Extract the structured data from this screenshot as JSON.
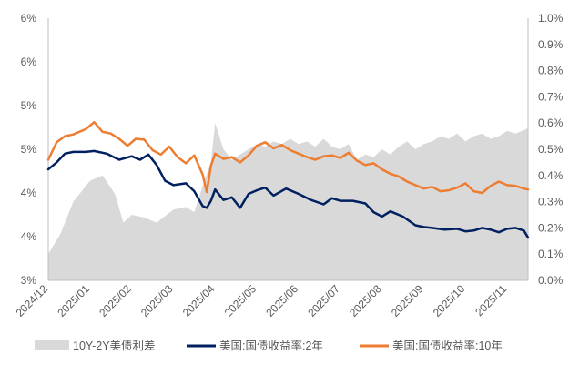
{
  "chart_data": {
    "type": "line",
    "title": "",
    "xlabel": "",
    "ylabel_left": "",
    "ylabel_right": "",
    "x_categories": [
      "2024/12",
      "2025/01",
      "2025/02",
      "2025/03",
      "2025/04",
      "2025/05",
      "2025/06",
      "2025/07",
      "2025/08",
      "2025/09",
      "2025/10",
      "2025/11"
    ],
    "left_axis": {
      "ticks": [
        "3%",
        "4%",
        "4%",
        "5%",
        "5%",
        "6%",
        "6%"
      ]
    },
    "right_axis": {
      "ticks": [
        "0.0%",
        "0.1%",
        "0.2%",
        "0.3%",
        "0.4%",
        "0.5%",
        "0.6%",
        "0.7%",
        "0.8%",
        "0.9%",
        "1.0%"
      ]
    },
    "grid": false,
    "legend_position": "bottom",
    "series": [
      {
        "name": "10Y-2Y美债利差",
        "kind": "area",
        "axis": "right",
        "color": "#d9d9d9",
        "x": [
          0.0,
          0.3,
          0.6,
          1.0,
          1.3,
          1.6,
          1.8,
          2.0,
          2.3,
          2.6,
          3.0,
          3.3,
          3.5,
          3.7,
          3.9,
          4.0,
          4.2,
          4.4,
          4.6,
          4.8,
          5.0,
          5.2,
          5.4,
          5.6,
          5.8,
          6.0,
          6.2,
          6.4,
          6.6,
          6.8,
          7.0,
          7.2,
          7.4,
          7.6,
          7.8,
          8.0,
          8.2,
          8.4,
          8.6,
          8.8,
          9.0,
          9.2,
          9.4,
          9.6,
          9.8,
          10.0,
          10.2,
          10.4,
          10.6,
          10.8,
          11.0,
          11.2,
          11.5
        ],
        "y": [
          0.1,
          0.18,
          0.3,
          0.38,
          0.4,
          0.33,
          0.22,
          0.25,
          0.24,
          0.22,
          0.27,
          0.28,
          0.26,
          0.36,
          0.45,
          0.6,
          0.5,
          0.46,
          0.48,
          0.5,
          0.52,
          0.51,
          0.53,
          0.52,
          0.54,
          0.52,
          0.53,
          0.51,
          0.54,
          0.51,
          0.5,
          0.52,
          0.46,
          0.48,
          0.47,
          0.5,
          0.48,
          0.51,
          0.53,
          0.5,
          0.52,
          0.53,
          0.55,
          0.54,
          0.56,
          0.53,
          0.55,
          0.56,
          0.54,
          0.55,
          0.57,
          0.56,
          0.58
        ]
      },
      {
        "name": "美国:国债收益率:2年",
        "kind": "line",
        "axis": "left",
        "color": "#002060",
        "x": [
          0.0,
          0.2,
          0.4,
          0.6,
          0.9,
          1.1,
          1.4,
          1.7,
          2.0,
          2.2,
          2.4,
          2.6,
          2.8,
          3.0,
          3.3,
          3.5,
          3.7,
          3.8,
          3.9,
          4.0,
          4.2,
          4.4,
          4.6,
          4.8,
          5.0,
          5.2,
          5.4,
          5.7,
          6.0,
          6.3,
          6.6,
          6.8,
          7.0,
          7.3,
          7.6,
          7.8,
          8.0,
          8.2,
          8.5,
          8.8,
          9.0,
          9.2,
          9.5,
          9.8,
          10.0,
          10.2,
          10.4,
          10.6,
          10.8,
          11.0,
          11.2,
          11.4,
          11.5
        ],
        "y": [
          4.27,
          4.35,
          4.45,
          4.47,
          4.47,
          4.48,
          4.45,
          4.38,
          4.42,
          4.38,
          4.44,
          4.32,
          4.14,
          4.09,
          4.11,
          4.02,
          3.85,
          3.83,
          3.91,
          4.04,
          3.92,
          3.95,
          3.83,
          3.99,
          4.03,
          4.06,
          3.97,
          4.05,
          3.99,
          3.92,
          3.87,
          3.94,
          3.91,
          3.91,
          3.88,
          3.78,
          3.73,
          3.79,
          3.73,
          3.63,
          3.61,
          3.6,
          3.58,
          3.59,
          3.56,
          3.57,
          3.6,
          3.58,
          3.55,
          3.59,
          3.6,
          3.57,
          3.49
        ]
      },
      {
        "name": "美国:国债收益率:10年",
        "kind": "line",
        "axis": "left",
        "color": "#ed7d31",
        "x": [
          0.0,
          0.2,
          0.4,
          0.6,
          0.9,
          1.1,
          1.3,
          1.5,
          1.7,
          1.9,
          2.1,
          2.3,
          2.5,
          2.7,
          2.9,
          3.1,
          3.3,
          3.5,
          3.7,
          3.8,
          3.9,
          4.0,
          4.2,
          4.4,
          4.6,
          4.8,
          5.0,
          5.2,
          5.4,
          5.6,
          5.8,
          6.0,
          6.2,
          6.4,
          6.6,
          6.8,
          7.0,
          7.2,
          7.4,
          7.6,
          7.8,
          8.0,
          8.2,
          8.4,
          8.6,
          8.8,
          9.0,
          9.2,
          9.4,
          9.6,
          9.8,
          10.0,
          10.2,
          10.4,
          10.6,
          10.8,
          11.0,
          11.2,
          11.4,
          11.5
        ],
        "y": [
          4.38,
          4.58,
          4.65,
          4.67,
          4.73,
          4.81,
          4.7,
          4.68,
          4.62,
          4.54,
          4.62,
          4.61,
          4.49,
          4.44,
          4.53,
          4.41,
          4.34,
          4.43,
          4.21,
          4.01,
          4.31,
          4.45,
          4.39,
          4.41,
          4.35,
          4.43,
          4.54,
          4.58,
          4.51,
          4.55,
          4.49,
          4.45,
          4.41,
          4.38,
          4.42,
          4.43,
          4.4,
          4.46,
          4.37,
          4.32,
          4.34,
          4.27,
          4.22,
          4.19,
          4.13,
          4.09,
          4.05,
          4.07,
          4.02,
          4.03,
          4.06,
          4.11,
          4.02,
          4.0,
          4.08,
          4.13,
          4.09,
          4.08,
          4.05,
          4.04
        ]
      }
    ]
  },
  "legend": {
    "items": [
      {
        "label": "10Y-2Y美债利差",
        "color": "#d9d9d9",
        "kind": "area"
      },
      {
        "label": "美国:国债收益率:2年",
        "color": "#002060",
        "kind": "line"
      },
      {
        "label": "美国:国债收益率:10年",
        "color": "#ed7d31",
        "kind": "line"
      }
    ]
  }
}
